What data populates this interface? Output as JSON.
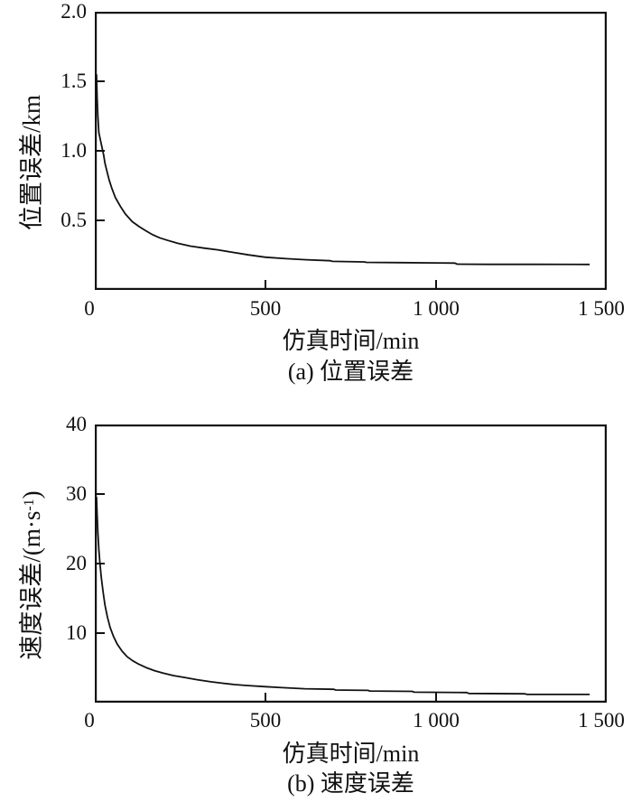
{
  "page": {
    "background": "#ffffff",
    "ink": "#111111"
  },
  "chart_data": [
    {
      "id": "position-error-chart",
      "type": "line",
      "title": "",
      "caption": "(a) 位置误差",
      "xlabel": "仿真时间/min",
      "ylabel": "位置误差/km",
      "ylabel_sup": "",
      "ylabel_close": "",
      "xlim": [
        0,
        1500
      ],
      "ylim": [
        0,
        2.0
      ],
      "xticks": [
        {
          "v": 0,
          "label": "0"
        },
        {
          "v": 500,
          "label": "500"
        },
        {
          "v": 1000,
          "label": "1 000"
        },
        {
          "v": 1500,
          "label": "1 500"
        }
      ],
      "yticks": [
        {
          "v": 0.5,
          "label": "0.5"
        },
        {
          "v": 1.0,
          "label": "1.0"
        },
        {
          "v": 1.5,
          "label": "1.5"
        },
        {
          "v": 2.0,
          "label": "2.0"
        }
      ],
      "grid": false,
      "legend": "none",
      "line_color": "#111111",
      "series": [
        {
          "x": [
            5,
            7,
            9,
            12,
            18,
            26,
            30,
            35,
            42,
            50,
            60,
            75,
            90,
            110,
            130,
            150,
            167,
            190,
            215,
            243,
            280,
            322,
            360,
            400,
            450,
            500,
            560,
            620,
            690,
            696,
            790,
            796,
            900,
            1000,
            1055,
            1062,
            1150,
            1300,
            1450
          ],
          "y": [
            1.55,
            1.38,
            1.25,
            1.13,
            1.06,
            0.97,
            0.91,
            0.86,
            0.79,
            0.73,
            0.665,
            0.6,
            0.545,
            0.49,
            0.455,
            0.425,
            0.4,
            0.375,
            0.355,
            0.335,
            0.315,
            0.3,
            0.288,
            0.272,
            0.252,
            0.235,
            0.225,
            0.217,
            0.21,
            0.205,
            0.201,
            0.198,
            0.196,
            0.194,
            0.193,
            0.185,
            0.184,
            0.184,
            0.183
          ]
        }
      ]
    },
    {
      "id": "velocity-error-chart",
      "type": "line",
      "title": "",
      "caption": "(b) 速度误差",
      "xlabel": "仿真时间/min",
      "ylabel": "速度误差/(m·s",
      "ylabel_sup": "-1",
      "ylabel_close": ")",
      "xlim": [
        0,
        1500
      ],
      "ylim": [
        0,
        40
      ],
      "xticks": [
        {
          "v": 0,
          "label": "0"
        },
        {
          "v": 500,
          "label": "500"
        },
        {
          "v": 1000,
          "label": "1 000"
        },
        {
          "v": 1500,
          "label": "1 500"
        }
      ],
      "yticks": [
        {
          "v": 10,
          "label": "10"
        },
        {
          "v": 20,
          "label": "20"
        },
        {
          "v": 30,
          "label": "30"
        },
        {
          "v": 40,
          "label": "40"
        }
      ],
      "grid": false,
      "legend": "none",
      "line_color": "#111111",
      "series": [
        {
          "x": [
            5,
            7,
            9,
            12,
            15,
            19,
            24,
            30,
            37,
            45,
            55,
            66,
            80,
            95,
            112,
            130,
            150,
            175,
            200,
            230,
            265,
            300,
            340,
            372,
            410,
            450,
            500,
            550,
            615,
            700,
            706,
            800,
            806,
            930,
            936,
            1090,
            1096,
            1260,
            1266,
            1450
          ],
          "y": [
            29.6,
            27.0,
            24.5,
            22.0,
            20.0,
            18.0,
            16.0,
            14.0,
            12.3,
            10.8,
            9.5,
            8.4,
            7.4,
            6.6,
            6.0,
            5.5,
            5.05,
            4.6,
            4.25,
            3.9,
            3.6,
            3.3,
            3.0,
            2.8,
            2.6,
            2.45,
            2.3,
            2.15,
            2.0,
            1.92,
            1.82,
            1.76,
            1.68,
            1.62,
            1.5,
            1.45,
            1.32,
            1.27,
            1.2,
            1.18
          ]
        }
      ]
    }
  ]
}
